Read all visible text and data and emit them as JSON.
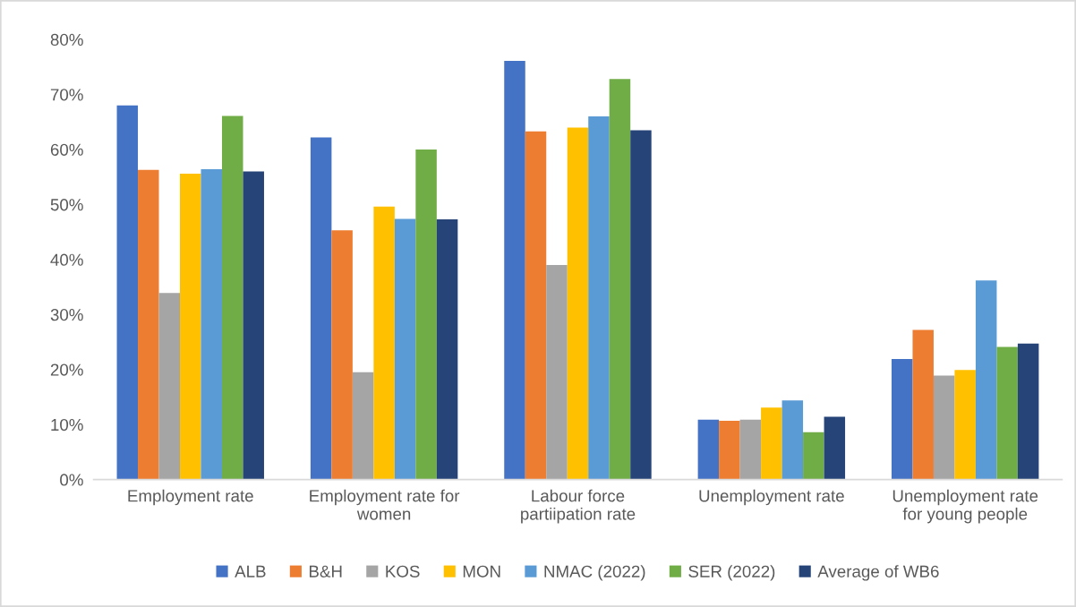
{
  "chart_data": {
    "type": "bar",
    "categories": [
      "Employment rate",
      "Employment rate for\nwomen",
      "Labour force\npartiipation rate",
      "Unemployment rate",
      "Unemployment rate\nfor young people"
    ],
    "series": [
      {
        "name": "ALB",
        "color": "#4472c4",
        "values": [
          68.0,
          62.2,
          76.1,
          10.9,
          21.9
        ]
      },
      {
        "name": "B&H",
        "color": "#ed7d31",
        "values": [
          56.3,
          45.3,
          63.3,
          10.7,
          27.2
        ]
      },
      {
        "name": "KOS",
        "color": "#a5a5a5",
        "values": [
          33.9,
          19.5,
          39.0,
          10.9,
          18.9
        ]
      },
      {
        "name": "MON",
        "color": "#ffc000",
        "values": [
          55.6,
          49.6,
          64.0,
          13.1,
          19.9
        ]
      },
      {
        "name": "NMAC (2022)",
        "color": "#5b9bd5",
        "values": [
          56.4,
          47.4,
          66.0,
          14.4,
          36.2
        ]
      },
      {
        "name": "SER (2022)",
        "color": "#70ad47",
        "values": [
          66.1,
          60.0,
          72.8,
          8.6,
          24.1
        ]
      },
      {
        "name": "Average of WB6",
        "color": "#264478",
        "values": [
          56.0,
          47.3,
          63.5,
          11.4,
          24.7
        ]
      }
    ],
    "ylim": [
      0,
      80
    ],
    "yticks": [
      {
        "value": 0,
        "label": "0%"
      },
      {
        "value": 10,
        "label": "10%"
      },
      {
        "value": 20,
        "label": "20%"
      },
      {
        "value": 30,
        "label": "30%"
      },
      {
        "value": 40,
        "label": "40%"
      },
      {
        "value": 50,
        "label": "50%"
      },
      {
        "value": 60,
        "label": "60%"
      },
      {
        "value": 70,
        "label": "70%"
      },
      {
        "value": 80,
        "label": "80%"
      }
    ],
    "grid": false,
    "legend": "bottom"
  }
}
